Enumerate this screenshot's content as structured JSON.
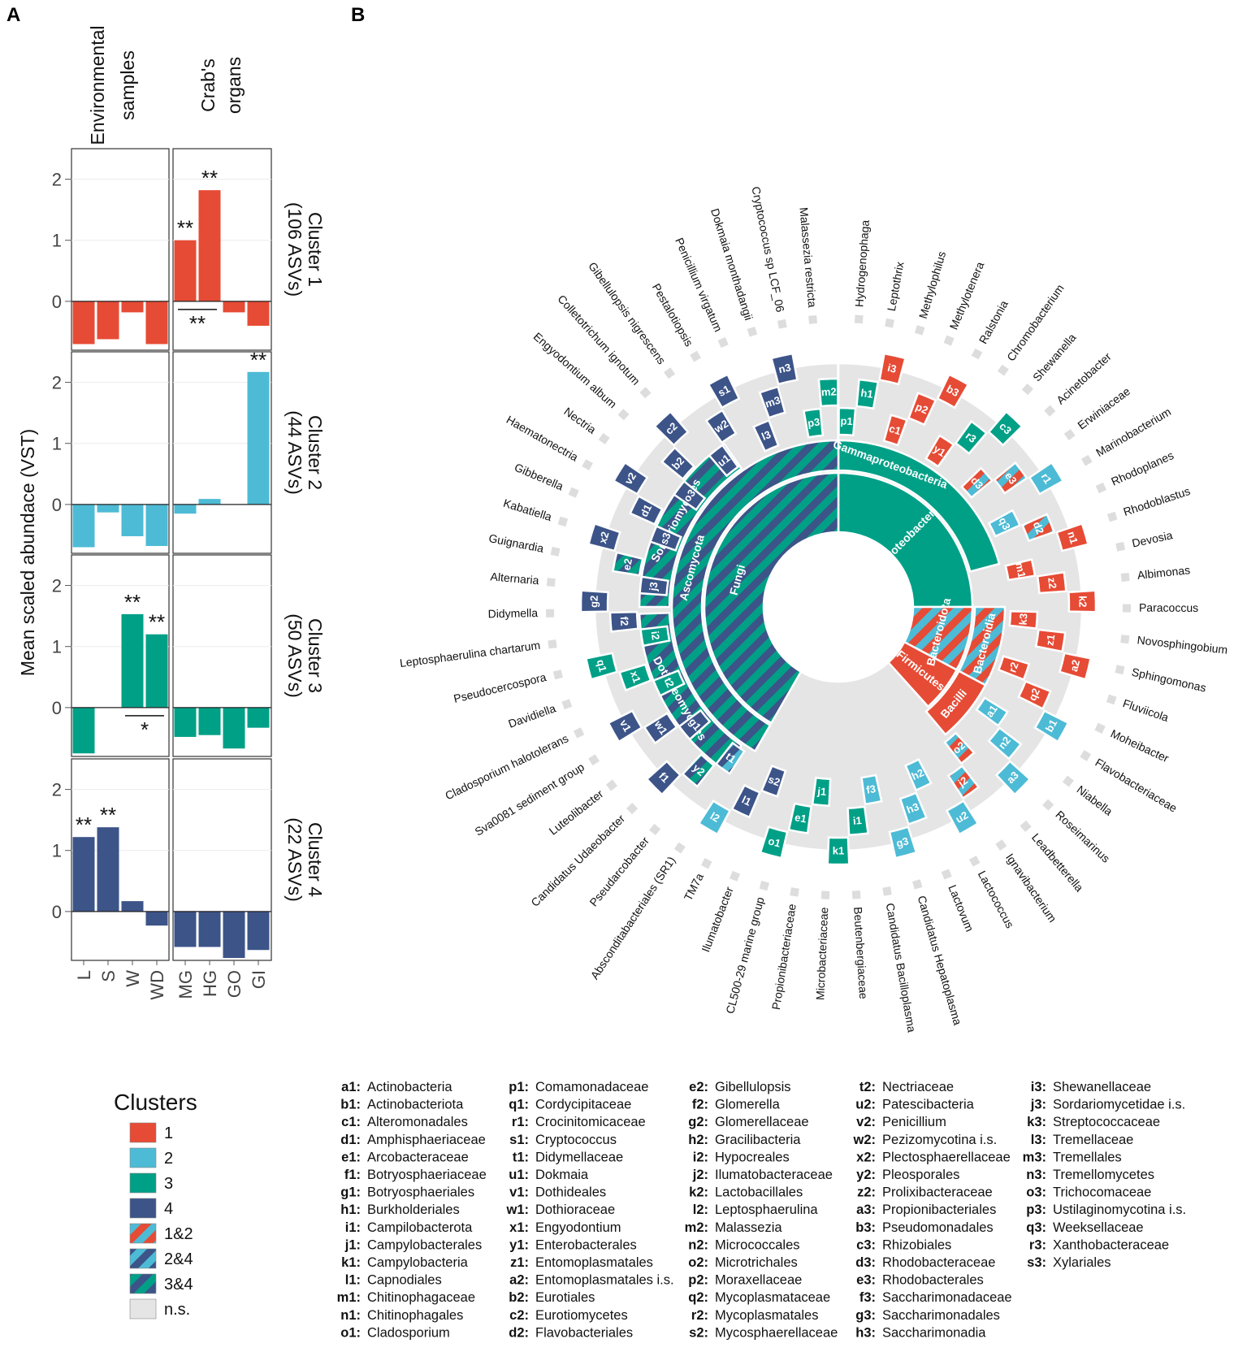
{
  "panels": {
    "a": "A",
    "b": "B"
  },
  "colors": {
    "c1": "#E64B35",
    "c2": "#4DBBD5",
    "c3": "#00A087",
    "c4": "#3C5488",
    "ns": "#E5E5E5"
  },
  "chart_data": [
    {
      "type": "bar",
      "panel": "A",
      "ylabel": "Mean scaled abundace (VST)",
      "ylim": [
        -0.8,
        2.5
      ],
      "yticks": [
        "0",
        "1",
        "2"
      ],
      "facets_col": [
        "Environmental samples",
        "Crab's organs"
      ],
      "facet_col_lines": [
        [
          "Environmental",
          "samples"
        ],
        [
          "Crab's",
          "organs"
        ]
      ],
      "categories_env": [
        "L",
        "S",
        "W",
        "WD"
      ],
      "categories_org": [
        "MG",
        "HG",
        "GO",
        "GI"
      ],
      "series": [
        {
          "name": "Cluster 1",
          "strip": [
            "Cluster 1",
            "(106 ASVs)"
          ],
          "color": "#E64B35",
          "env": [
            -0.7,
            -0.62,
            -0.18,
            -0.7
          ],
          "org": [
            1.0,
            1.82,
            -0.18,
            -0.4
          ],
          "stars": [
            {
              "side": "org",
              "idx": 0,
              "text": "**"
            },
            {
              "side": "org",
              "idx": 1,
              "text": "**"
            }
          ],
          "bracket": {
            "side": "org",
            "from": 0,
            "to": 1,
            "text": "**"
          }
        },
        {
          "name": "Cluster 2",
          "strip": [
            "Cluster 2",
            "(44 ASVs)"
          ],
          "color": "#4DBBD5",
          "env": [
            -0.7,
            -0.13,
            -0.52,
            -0.68
          ],
          "org": [
            -0.15,
            0.09,
            0.0,
            2.17
          ],
          "stars": [
            {
              "side": "org",
              "idx": 3,
              "text": "**"
            }
          ],
          "bracket": null
        },
        {
          "name": "Cluster 3",
          "strip": [
            "Cluster 3",
            "(50 ASVs)"
          ],
          "color": "#00A087",
          "env": [
            -0.75,
            0.0,
            1.53,
            1.2
          ],
          "org": [
            -0.48,
            -0.45,
            -0.67,
            -0.33
          ],
          "stars": [
            {
              "side": "env",
              "idx": 2,
              "text": "**"
            },
            {
              "side": "env",
              "idx": 3,
              "text": "**"
            }
          ],
          "bracket": {
            "side": "env",
            "from": 2,
            "to": 3,
            "text": "*"
          }
        },
        {
          "name": "Cluster 4",
          "strip": [
            "Cluster 4",
            "(22 ASVs)"
          ],
          "color": "#3C5488",
          "env": [
            1.22,
            1.38,
            0.17,
            -0.23
          ],
          "org": [
            -0.58,
            -0.58,
            -0.76,
            -0.63
          ],
          "stars": [
            {
              "side": "env",
              "idx": 0,
              "text": "**"
            },
            {
              "side": "env",
              "idx": 1,
              "text": "**"
            }
          ],
          "bracket": null
        }
      ]
    },
    {
      "type": "sunburst",
      "panel": "B",
      "rings": [
        {
          "level": "kingdom",
          "segments": [
            {
              "label": "Proteobacteria",
              "pattern": "c3"
            },
            {
              "label": "Bacteroidota",
              "pattern": "s12"
            },
            {
              "label": "Firmicutes",
              "pattern": "c1"
            },
            {
              "label": "Fungi",
              "pattern": "s34"
            }
          ]
        },
        {
          "level": "class",
          "segments": [
            {
              "label": "Gammaproteobacteria",
              "pattern": "c3"
            },
            {
              "label": "Bacteroidia",
              "pattern": "s12"
            },
            {
              "label": "Bacilli",
              "pattern": "c1"
            },
            {
              "label": "Ascomycota",
              "pattern": "s34"
            },
            {
              "label": "Sordariomycetes",
              "pattern": "s34"
            },
            {
              "label": "Dothideomycetes",
              "pattern": "s34"
            }
          ]
        }
      ],
      "outer_labels": [
        "Malassezia restricta",
        "Cryptococcus sp LCF_06",
        "Dokmaia monthadangii",
        "Penicillium virgatum",
        "Pestalotiopsis",
        "Gibellulopsis nigrescens",
        "Colletotrichum ignotum",
        "Engyodontium album",
        "Nectria",
        "Haematonectria",
        "Gibberella",
        "Kabatiella",
        "Guignardia",
        "Alternaria",
        "Didymella",
        "Leptosphaerulina chartarum",
        "Pseudocercospora",
        "Davidiella",
        "Cladosporium halotolerans",
        "Sva0081 sediment group",
        "Luteolibacter",
        "Candidatus Udaeobacter",
        "Pseudarcobacter",
        "Absconditabacteriales (SR1)",
        "TM7a",
        "Ilumatobacter",
        "CL500-29 marine group",
        "Propionibacteriaceae",
        "Microbacteriaceae",
        "Beutenbergiaceae",
        "Candidatus Bacilloplasma",
        "Candidatus Hepatoplasma",
        "Lactovum",
        "Lactococcus",
        "Ignavibacterium",
        "Leadbetterella",
        "Roseimarinus",
        "Niabella",
        "Flavobacteriaceae",
        "Moheibacter",
        "Fluviicola",
        "Sphingomonas",
        "Novosphingobium",
        "Paracoccus",
        "Albimonas",
        "Devosia",
        "Rhodoblastus",
        "Rhodoplanes",
        "Marinobacterium",
        "Erwiniaceae",
        "Acinetobacter",
        "Shewanella",
        "Chromobacterium",
        "Ralstonia",
        "Methylotenera",
        "Methylophilus",
        "Leptothrix",
        "Hydrogenophaga"
      ],
      "wedges": [
        {
          "code": "p1",
          "c": "c3"
        },
        {
          "code": "h1",
          "c": "c3"
        },
        {
          "code": "i3",
          "c": "c1"
        },
        {
          "code": "c1",
          "c": "c1"
        },
        {
          "code": "p2",
          "c": "c1"
        },
        {
          "code": "b3",
          "c": "c1"
        },
        {
          "code": "y1",
          "c": "c1"
        },
        {
          "code": "r3",
          "c": "c3"
        },
        {
          "code": "c3",
          "c": "c3"
        },
        {
          "code": "d3",
          "c": "s12"
        },
        {
          "code": "e3",
          "c": "s12"
        },
        {
          "code": "r1",
          "c": "c2"
        },
        {
          "code": "q3",
          "c": "c2"
        },
        {
          "code": "d2",
          "c": "s12"
        },
        {
          "code": "n1",
          "c": "c1"
        },
        {
          "code": "m1",
          "c": "c1"
        },
        {
          "code": "z2",
          "c": "c1"
        },
        {
          "code": "k2",
          "c": "c1"
        },
        {
          "code": "k3",
          "c": "c1"
        },
        {
          "code": "z1",
          "c": "c1"
        },
        {
          "code": "a2",
          "c": "c1"
        },
        {
          "code": "r2",
          "c": "c1"
        },
        {
          "code": "q2",
          "c": "c1"
        },
        {
          "code": "b1",
          "c": "c2"
        },
        {
          "code": "a1",
          "c": "c2"
        },
        {
          "code": "n2",
          "c": "c2"
        },
        {
          "code": "a3",
          "c": "c2"
        },
        {
          "code": "o2",
          "c": "s12"
        },
        {
          "code": "j2",
          "c": "s12"
        },
        {
          "code": "u2",
          "c": "c2"
        },
        {
          "code": "h2",
          "c": "c2"
        },
        {
          "code": "h3",
          "c": "c2"
        },
        {
          "code": "g3",
          "c": "c2"
        },
        {
          "code": "f3",
          "c": "c2"
        },
        {
          "code": "i1",
          "c": "c3"
        },
        {
          "code": "k1",
          "c": "c3"
        },
        {
          "code": "j1",
          "c": "c3"
        },
        {
          "code": "e1",
          "c": "c3"
        },
        {
          "code": "o1",
          "c": "c3"
        },
        {
          "code": "s2",
          "c": "c4"
        },
        {
          "code": "l1",
          "c": "c4"
        },
        {
          "code": "l2",
          "c": "c2"
        },
        {
          "code": "t1",
          "c": "s24"
        },
        {
          "code": "y2",
          "c": "s34"
        },
        {
          "code": "f1",
          "c": "c4"
        },
        {
          "code": "g1",
          "c": "c4"
        },
        {
          "code": "w1",
          "c": "c4"
        },
        {
          "code": "v1",
          "c": "c4"
        },
        {
          "code": "t2",
          "c": "c3"
        },
        {
          "code": "x1",
          "c": "c3"
        },
        {
          "code": "q1",
          "c": "c3"
        },
        {
          "code": "i2",
          "c": "c3"
        },
        {
          "code": "f2",
          "c": "c4"
        },
        {
          "code": "g2",
          "c": "c4"
        },
        {
          "code": "j3",
          "c": "c4"
        },
        {
          "code": "e2",
          "c": "s34"
        },
        {
          "code": "x2",
          "c": "c4"
        },
        {
          "code": "s3",
          "c": "c4"
        },
        {
          "code": "d1",
          "c": "c4"
        },
        {
          "code": "v2",
          "c": "c4"
        },
        {
          "code": "o3",
          "c": "c4"
        },
        {
          "code": "b2",
          "c": "c4"
        },
        {
          "code": "c2",
          "c": "c4"
        },
        {
          "code": "u1",
          "c": "c4"
        },
        {
          "code": "w2",
          "c": "c4"
        },
        {
          "code": "s1",
          "c": "c4"
        },
        {
          "code": "l3",
          "c": "c4"
        },
        {
          "code": "m3",
          "c": "c4"
        },
        {
          "code": "n3",
          "c": "c4"
        },
        {
          "code": "p3",
          "c": "c3"
        },
        {
          "code": "m2",
          "c": "c3"
        }
      ]
    }
  ],
  "legend": {
    "title": "Clusters",
    "items": [
      {
        "label": "1",
        "fill": "c1"
      },
      {
        "label": "2",
        "fill": "c2"
      },
      {
        "label": "3",
        "fill": "c3"
      },
      {
        "label": "4",
        "fill": "c4"
      },
      {
        "label": "1&2",
        "fill": "s12"
      },
      {
        "label": "2&4",
        "fill": "s24"
      },
      {
        "label": "3&4",
        "fill": "s34"
      },
      {
        "label": "n.s.",
        "fill": "ns"
      }
    ]
  },
  "key": [
    [
      [
        "a1:",
        "Actinobacteria"
      ],
      [
        "b1:",
        "Actinobacteriota"
      ],
      [
        "c1:",
        "Alteromonadales"
      ],
      [
        "d1:",
        "Amphisphaeriaceae"
      ],
      [
        "e1:",
        "Arcobacteraceae"
      ],
      [
        "f1:",
        "Botryosphaeriaceae"
      ],
      [
        "g1:",
        "Botryosphaeriales"
      ],
      [
        "h1:",
        "Burkholderiales"
      ],
      [
        "i1:",
        "Campilobacterota"
      ],
      [
        "j1:",
        "Campylobacterales"
      ],
      [
        "k1:",
        "Campylobacteria"
      ],
      [
        "l1:",
        "Capnodiales"
      ],
      [
        "m1:",
        "Chitinophagaceae"
      ],
      [
        "n1:",
        "Chitinophagales"
      ],
      [
        "o1:",
        "Cladosporium"
      ]
    ],
    [
      [
        "p1:",
        "Comamonadaceae"
      ],
      [
        "q1:",
        "Cordycipitaceae"
      ],
      [
        "r1:",
        "Crocinitomicaceae"
      ],
      [
        "s1:",
        "Cryptococcus"
      ],
      [
        "t1:",
        "Didymellaceae"
      ],
      [
        "u1:",
        "Dokmaia"
      ],
      [
        "v1:",
        "Dothideales"
      ],
      [
        "w1:",
        "Dothioraceae"
      ],
      [
        "x1:",
        "Engyodontium"
      ],
      [
        "y1:",
        "Enterobacterales"
      ],
      [
        "z1:",
        "Entomoplasmatales"
      ],
      [
        "a2:",
        "Entomoplasmatales i.s."
      ],
      [
        "b2:",
        "Eurotiales"
      ],
      [
        "c2:",
        "Eurotiomycetes"
      ],
      [
        "d2:",
        "Flavobacteriales"
      ]
    ],
    [
      [
        "e2:",
        "Gibellulopsis"
      ],
      [
        "f2:",
        "Glomerella"
      ],
      [
        "g2:",
        "Glomerellaceae"
      ],
      [
        "h2:",
        "Gracilibacteria"
      ],
      [
        "i2:",
        "Hypocreales"
      ],
      [
        "j2:",
        "Ilumatobacteraceae"
      ],
      [
        "k2:",
        "Lactobacillales"
      ],
      [
        "l2:",
        "Leptosphaerulina"
      ],
      [
        "m2:",
        "Malassezia"
      ],
      [
        "n2:",
        "Micrococcales"
      ],
      [
        "o2:",
        "Microtrichales"
      ],
      [
        "p2:",
        "Moraxellaceae"
      ],
      [
        "q2:",
        "Mycoplasmataceae"
      ],
      [
        "r2:",
        "Mycoplasmatales"
      ],
      [
        "s2:",
        "Mycosphaerellaceae"
      ]
    ],
    [
      [
        "t2:",
        "Nectriaceae"
      ],
      [
        "u2:",
        "Patescibacteria"
      ],
      [
        "v2:",
        "Penicillium"
      ],
      [
        "w2:",
        "Pezizomycotina i.s."
      ],
      [
        "x2:",
        "Plectosphaerellaceae"
      ],
      [
        "y2:",
        "Pleosporales"
      ],
      [
        "z2:",
        "Prolixibacteraceae"
      ],
      [
        "a3:",
        "Propionibacteriales"
      ],
      [
        "b3:",
        "Pseudomonadales"
      ],
      [
        "c3:",
        "Rhizobiales"
      ],
      [
        "d3:",
        "Rhodobacteraceae"
      ],
      [
        "e3:",
        "Rhodobacterales"
      ],
      [
        "f3:",
        "Saccharimonadaceae"
      ],
      [
        "g3:",
        "Saccharimonadales"
      ],
      [
        "h3:",
        "Saccharimonadia"
      ]
    ],
    [
      [
        "i3:",
        "Shewanellaceae"
      ],
      [
        "j3:",
        "Sordariomycetidae i.s."
      ],
      [
        "k3:",
        "Streptococcaceae"
      ],
      [
        "l3:",
        "Tremellaceae"
      ],
      [
        "m3:",
        "Tremellales"
      ],
      [
        "n3:",
        "Tremellomycetes"
      ],
      [
        "o3:",
        "Trichocomaceae"
      ],
      [
        "p3:",
        "Ustilaginomycotina i.s."
      ],
      [
        "q3:",
        "Weeksellaceae"
      ],
      [
        "r3:",
        "Xanthobacteraceae"
      ],
      [
        "s3:",
        "Xylariales"
      ]
    ]
  ]
}
